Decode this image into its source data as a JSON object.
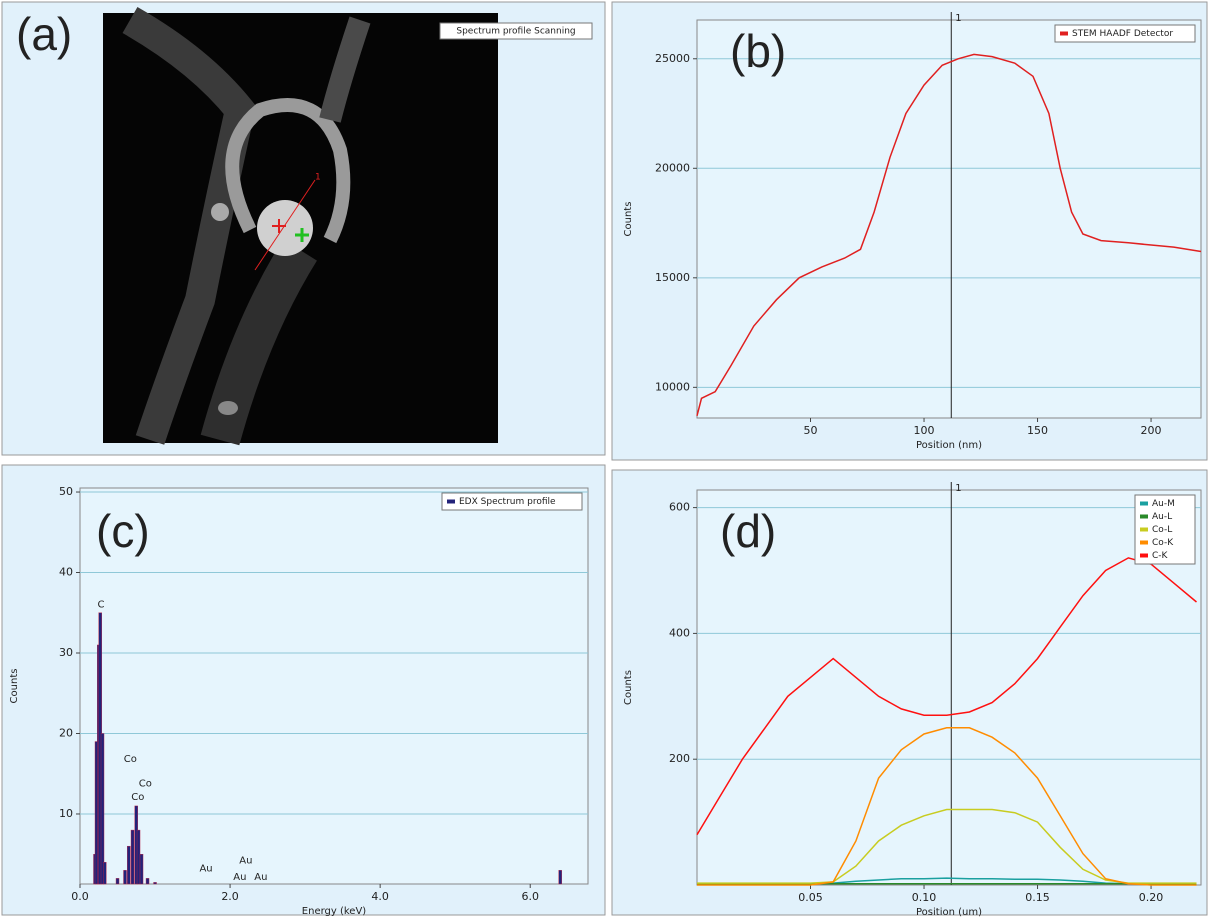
{
  "image_panel": {
    "label": "(a)",
    "legend": "Spectrum profile Scanning",
    "marker": "1"
  },
  "chart_data": [
    {
      "type": "line",
      "panel_label": "(b)",
      "x_label": "Position (nm)",
      "y_label": "Counts",
      "xlim": [
        0,
        222
      ],
      "xticks": [
        50,
        100,
        150,
        200
      ],
      "ylim": [
        8600,
        26770
      ],
      "yticks": [
        10000,
        15000,
        20000,
        25000
      ],
      "grid": true,
      "cursor": {
        "x": 112,
        "label": "1"
      },
      "x": [
        0,
        2,
        8,
        15,
        25,
        35,
        45,
        55,
        65,
        72,
        78,
        85,
        92,
        100,
        108,
        115,
        122,
        130,
        140,
        148,
        155,
        160,
        165,
        170,
        178,
        190,
        200,
        210,
        222
      ],
      "series": [
        {
          "name": "STEM HAADF Detector",
          "color": "#e02020",
          "values": [
            8700,
            9500,
            9800,
            11000,
            12800,
            14000,
            15000,
            15500,
            15900,
            16300,
            18000,
            20500,
            22500,
            23800,
            24700,
            25000,
            25200,
            25100,
            24800,
            24200,
            22500,
            20000,
            18000,
            17000,
            16700,
            16600,
            16500,
            16400,
            16200
          ]
        }
      ]
    },
    {
      "type": "bar",
      "panel_label": "(c)",
      "x_label": "Energy (keV)",
      "y_label": "Counts",
      "xlim": [
        0,
        6.77
      ],
      "xticks": [
        {
          "value": 0,
          "label": "0.0"
        },
        {
          "value": 2,
          "label": "2.0"
        },
        {
          "value": 4,
          "label": "4.0"
        },
        {
          "value": 6,
          "label": "6.0"
        }
      ],
      "ylim": [
        1.3,
        50.5
      ],
      "yticks": [
        10,
        20,
        30,
        40,
        50
      ],
      "grid": true,
      "x": [
        0.2,
        0.22,
        0.25,
        0.27,
        0.3,
        0.33,
        0.5,
        0.6,
        0.65,
        0.7,
        0.75,
        0.78,
        0.82,
        0.9,
        1.0,
        6.4
      ],
      "series": [
        {
          "name": "EDX Spectrum profile",
          "color": "#23237a",
          "values": [
            5,
            19,
            31,
            35,
            20,
            4,
            2,
            3,
            6,
            8,
            11,
            8,
            5,
            2,
            1.5,
            3
          ]
        }
      ],
      "annotations": [
        {
          "text": "C",
          "x": 0.28,
          "y": 36
        },
        {
          "text": "Co",
          "x": 0.67,
          "y": 16.8
        },
        {
          "text": "Co",
          "x": 0.87,
          "y": 13.8
        },
        {
          "text": "Co",
          "x": 0.77,
          "y": 12.1
        },
        {
          "text": "Au",
          "x": 1.68,
          "y": 3.2
        },
        {
          "text": "Au",
          "x": 2.21,
          "y": 4.2
        },
        {
          "text": "Au",
          "x": 2.13,
          "y": 2.2
        },
        {
          "text": "Au",
          "x": 2.41,
          "y": 2.2
        }
      ]
    },
    {
      "type": "line",
      "panel_label": "(d)",
      "x_label": "Position (um)",
      "y_label": "Counts",
      "xlim": [
        0,
        0.222
      ],
      "xticks": [
        0.05,
        {
          "value": 0.1,
          "label": "0.10"
        },
        0.15,
        {
          "value": 0.2,
          "label": "0.20"
        }
      ],
      "ylim": [
        0,
        628
      ],
      "yticks": [
        200,
        400,
        600
      ],
      "grid": true,
      "cursor": {
        "x": 0.112,
        "label": "1"
      },
      "x": [
        0,
        0.01,
        0.02,
        0.03,
        0.04,
        0.05,
        0.06,
        0.07,
        0.08,
        0.09,
        0.1,
        0.11,
        0.12,
        0.13,
        0.14,
        0.15,
        0.16,
        0.17,
        0.18,
        0.19,
        0.2,
        0.21,
        0.22
      ],
      "series": [
        {
          "name": "Au-M",
          "color": "#1aa0a0",
          "values": [
            2,
            2,
            2,
            2,
            2,
            2,
            3,
            6,
            8,
            10,
            10,
            11,
            10,
            10,
            9,
            9,
            8,
            6,
            3,
            2,
            2,
            2,
            2
          ]
        },
        {
          "name": "Au-L",
          "color": "#2a8a2a",
          "values": [
            2,
            2,
            2,
            2,
            2,
            2,
            2,
            2,
            2,
            2,
            2,
            2,
            2,
            2,
            2,
            2,
            2,
            2,
            2,
            2,
            2,
            2,
            2
          ]
        },
        {
          "name": "Co-L",
          "color": "#c8cc20",
          "values": [
            3,
            3,
            3,
            3,
            3,
            3,
            5,
            30,
            70,
            95,
            110,
            120,
            120,
            120,
            115,
            100,
            60,
            25,
            8,
            3,
            3,
            3,
            3
          ]
        },
        {
          "name": "Co-K",
          "color": "#ff8c00",
          "values": [
            0,
            0,
            0,
            0,
            0,
            0,
            5,
            70,
            170,
            215,
            240,
            250,
            250,
            235,
            210,
            170,
            110,
            50,
            10,
            2,
            0,
            0,
            0
          ]
        },
        {
          "name": "C-K",
          "color": "#ff1010",
          "values": [
            80,
            140,
            200,
            250,
            300,
            330,
            360,
            330,
            300,
            280,
            270,
            270,
            275,
            290,
            320,
            360,
            410,
            460,
            500,
            520,
            510,
            480,
            450
          ]
        }
      ]
    }
  ]
}
